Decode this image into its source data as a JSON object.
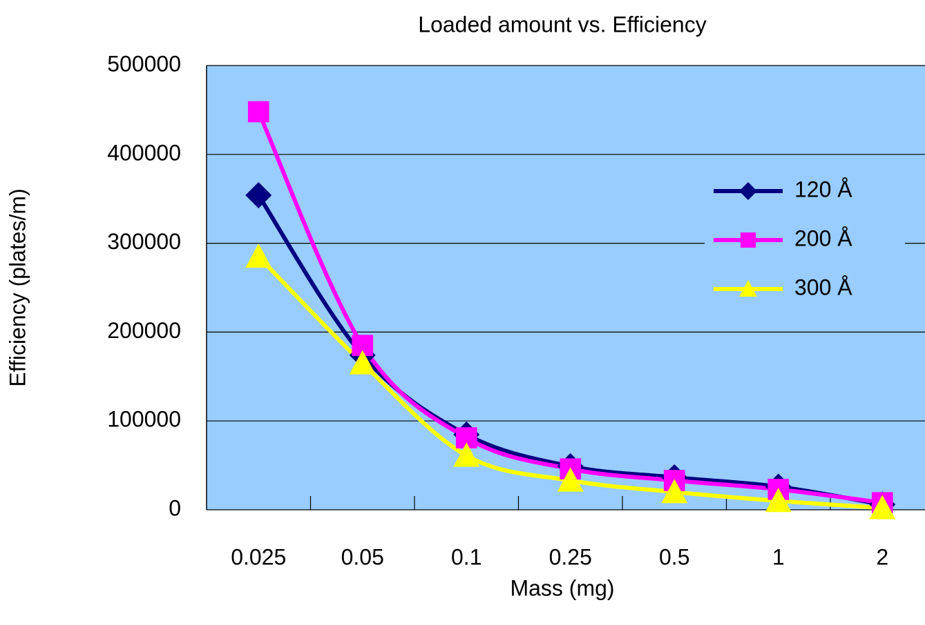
{
  "chart_data": {
    "type": "line",
    "title": "Loaded amount  vs. Efficiency",
    "x_label": "Mass (mg)",
    "y_label": "Efficiency (plates/m)",
    "categories": [
      "0.025",
      "0.05",
      "0.1",
      "0.25",
      "0.5",
      "1",
      "2"
    ],
    "series": [
      {
        "name": "120 Å",
        "color": "#000080",
        "marker": "diamond",
        "values": [
          354000,
          174000,
          84600,
          49000,
          36500,
          26000,
          6000
        ]
      },
      {
        "name": "200 Å",
        "color": "#ff00ff",
        "marker": "square",
        "values": [
          448000,
          185000,
          81000,
          46000,
          33000,
          23000,
          8000
        ]
      },
      {
        "name": "300 Å",
        "color": "#ffff00",
        "marker": "triangle",
        "values": [
          285000,
          165000,
          61000,
          33000,
          20000,
          10000,
          2000
        ]
      }
    ],
    "ylim": [
      0,
      500000
    ],
    "yticks": [
      0,
      100000,
      200000,
      300000,
      400000,
      500000
    ],
    "grid": true,
    "legend": "right",
    "plot_background": "#99ccff"
  }
}
